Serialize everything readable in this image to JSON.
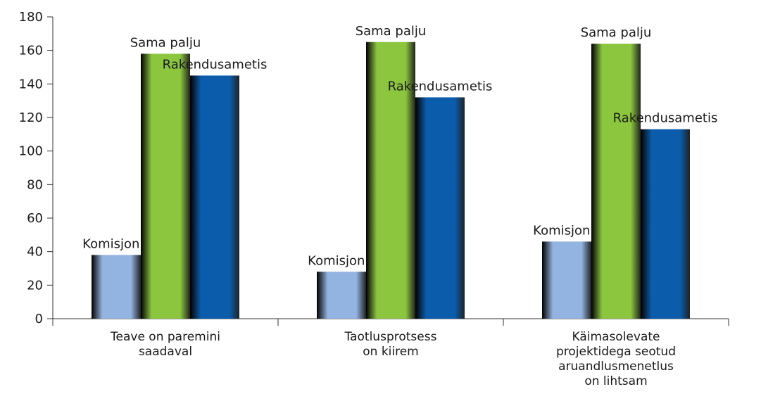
{
  "chart_data": {
    "type": "bar",
    "categories": [
      "Teave on paremini\nsaadaval",
      "Taotlusprotsess\non kiirem",
      "Käimasolevate\nprojektidega seotud\naruandlusmenetlus\non lihtsam"
    ],
    "series": [
      {
        "name": "Komisjonis",
        "color": "#93b3e0",
        "values": [
          38,
          28,
          46
        ]
      },
      {
        "name": "Sama palju",
        "color": "#8cc63f",
        "values": [
          158,
          165,
          164
        ]
      },
      {
        "name": "Rakendusametis",
        "color": "#0b5cab",
        "values": [
          145,
          132,
          113
        ]
      }
    ],
    "ylim": [
      0,
      180
    ],
    "yticks": [
      0,
      20,
      40,
      60,
      80,
      100,
      120,
      140,
      160,
      180
    ]
  }
}
